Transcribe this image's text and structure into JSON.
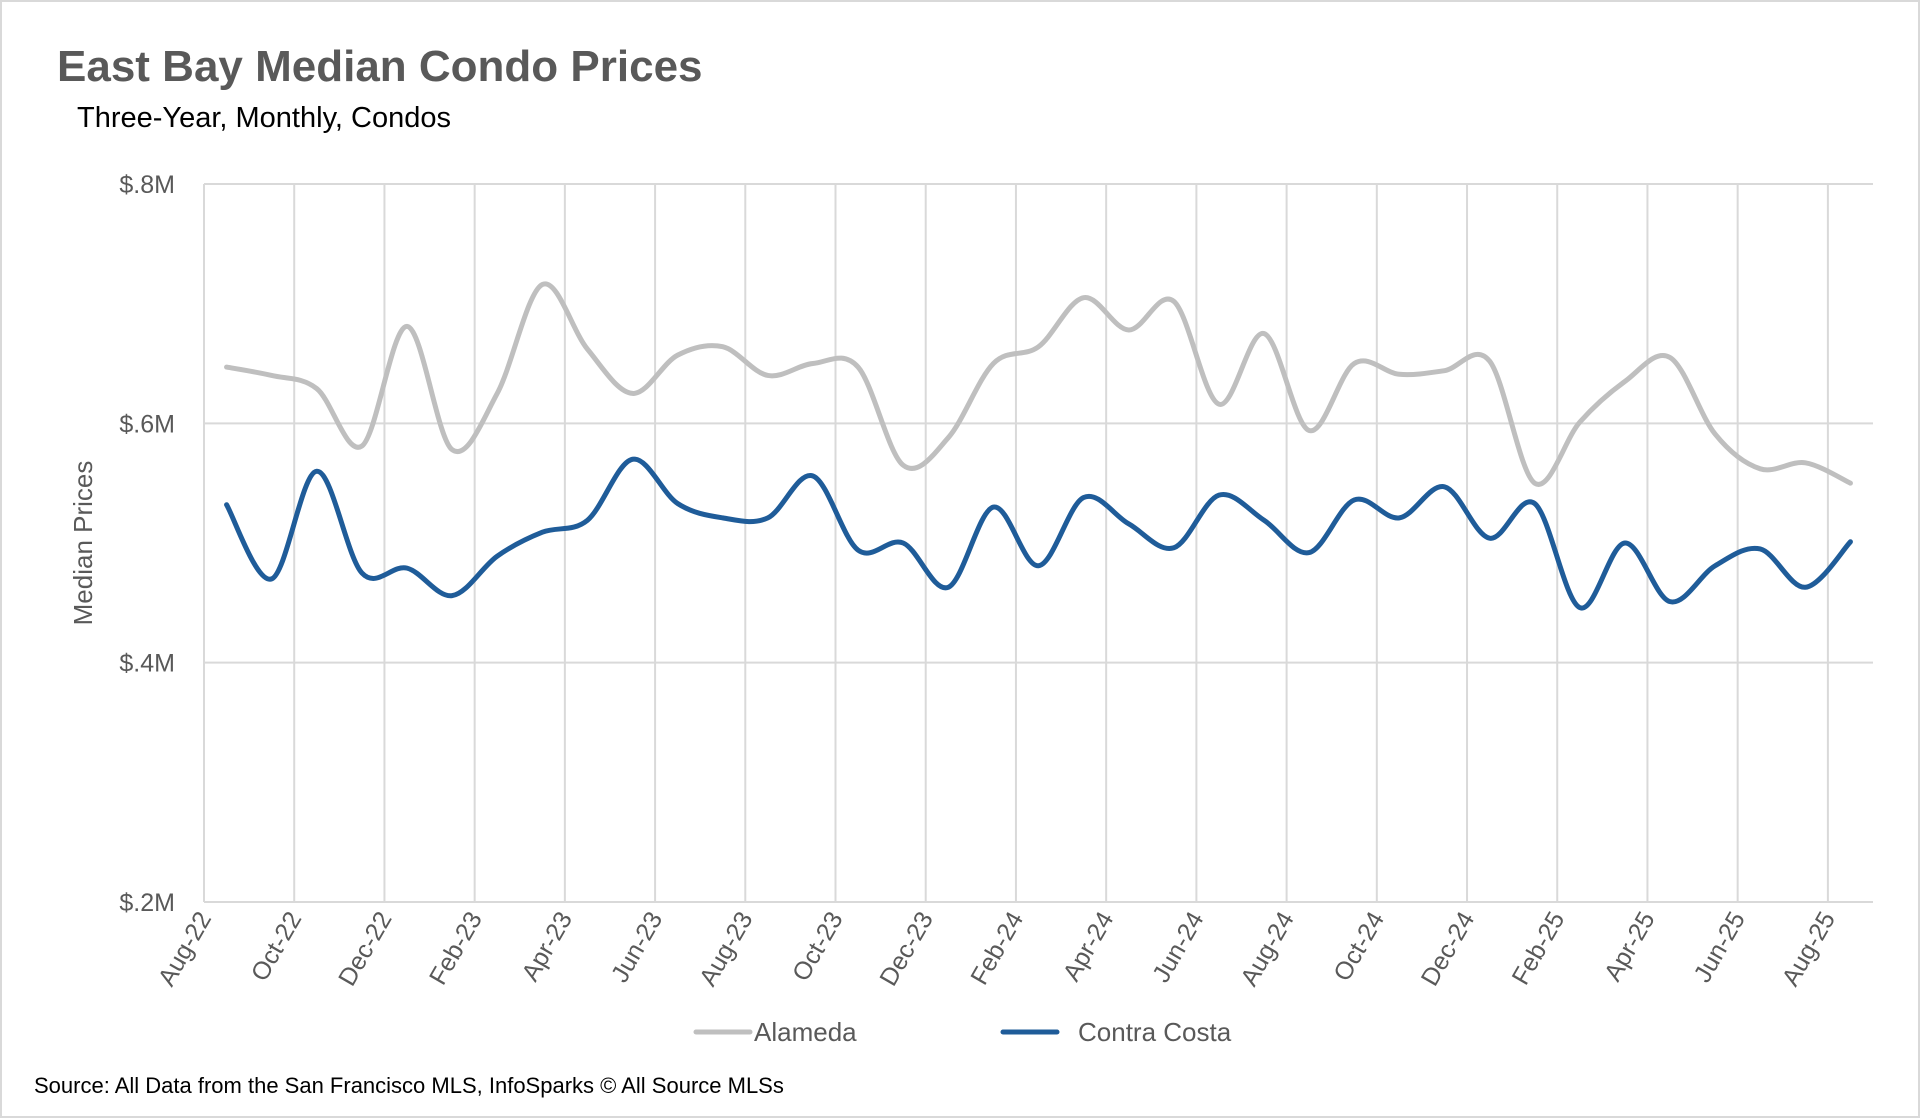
{
  "chart_data": {
    "type": "line",
    "title": "East Bay Median Condo Prices",
    "subtitle": "Three-Year, Monthly, Condos",
    "ylabel": "Median Prices",
    "xlabel": "",
    "ylim": [
      0.2,
      0.8
    ],
    "y_unit": "$M",
    "y_ticks": [
      0.2,
      0.4,
      0.6,
      0.8
    ],
    "y_tick_labels": [
      "$.2M",
      "$.4M",
      "$.6M",
      "$.8M"
    ],
    "categories": [
      "Aug-22",
      "Sep-22",
      "Oct-22",
      "Nov-22",
      "Dec-22",
      "Jan-23",
      "Feb-23",
      "Mar-23",
      "Apr-23",
      "May-23",
      "Jun-23",
      "Jul-23",
      "Aug-23",
      "Sep-23",
      "Oct-23",
      "Nov-23",
      "Dec-23",
      "Jan-24",
      "Feb-24",
      "Mar-24",
      "Apr-24",
      "May-24",
      "Jun-24",
      "Jul-24",
      "Aug-24",
      "Sep-24",
      "Oct-24",
      "Nov-24",
      "Dec-24",
      "Jan-25",
      "Feb-25",
      "Mar-25",
      "Apr-25",
      "May-25",
      "Jun-25",
      "Jul-25",
      "Aug-25"
    ],
    "x_tick_labels": [
      "Aug-22",
      "Oct-22",
      "Dec-22",
      "Feb-23",
      "Apr-23",
      "Jun-23",
      "Aug-23",
      "Oct-23",
      "Dec-23",
      "Feb-24",
      "Apr-24",
      "Jun-24",
      "Aug-24",
      "Oct-24",
      "Dec-24",
      "Feb-25",
      "Apr-25",
      "Jun-25",
      "Aug-25"
    ],
    "grid": {
      "horizontal": true,
      "vertical": true
    },
    "legend_position": "bottom",
    "smoothed": true,
    "series": [
      {
        "name": "Alameda",
        "color": "#BFBFBF",
        "values": [
          0.647,
          0.64,
          0.629,
          0.581,
          0.681,
          0.578,
          0.625,
          0.716,
          0.662,
          0.625,
          0.657,
          0.664,
          0.64,
          0.65,
          0.647,
          0.565,
          0.588,
          0.65,
          0.664,
          0.705,
          0.678,
          0.702,
          0.616,
          0.675,
          0.594,
          0.65,
          0.641,
          0.644,
          0.652,
          0.55,
          0.601,
          0.635,
          0.655,
          0.591,
          0.562,
          0.567,
          0.55
        ]
      },
      {
        "name": "Contra Costa",
        "color": "#1F5C99",
        "values": [
          0.532,
          0.47,
          0.56,
          0.475,
          0.479,
          0.456,
          0.489,
          0.509,
          0.519,
          0.57,
          0.533,
          0.521,
          0.521,
          0.556,
          0.494,
          0.5,
          0.463,
          0.53,
          0.481,
          0.538,
          0.516,
          0.496,
          0.54,
          0.519,
          0.492,
          0.536,
          0.521,
          0.547,
          0.504,
          0.533,
          0.446,
          0.5,
          0.451,
          0.481,
          0.495,
          0.463,
          0.501
        ]
      }
    ],
    "source": "Source: All Data from the San Francisco MLS, InfoSparks © All Source MLSs"
  }
}
